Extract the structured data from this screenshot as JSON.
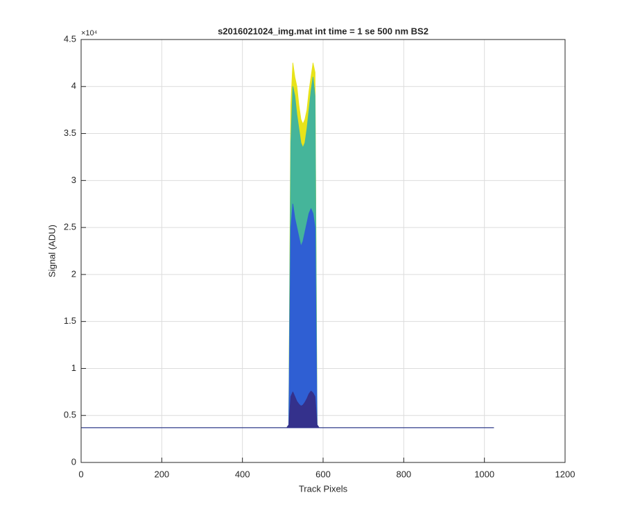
{
  "chart_data": {
    "type": "area",
    "title": "s2016021024_img.mat int time = 1 se  500 nm BS2",
    "x_label": "Track Pixels",
    "y_label": "Signal (ADU)",
    "y_scale_label": "×10⁴",
    "x": [
      0,
      510,
      515,
      520,
      525,
      530,
      535,
      540,
      545,
      550,
      555,
      560,
      565,
      570,
      575,
      580,
      585,
      590,
      1023
    ],
    "series": [
      {
        "color": "#e8e31a",
        "values": [
          3700,
          3700,
          4000,
          38000,
          42500,
          41000,
          40000,
          38000,
          36500,
          36000,
          36500,
          37500,
          39500,
          41000,
          42500,
          41500,
          4000,
          3700,
          3700
        ]
      },
      {
        "color": "#45b59a",
        "values": [
          3700,
          3700,
          4000,
          34000,
          40000,
          39000,
          37000,
          35500,
          34000,
          33500,
          34000,
          35500,
          37500,
          39500,
          41000,
          39000,
          4000,
          3700,
          3700
        ]
      },
      {
        "color": "#2f5fd3",
        "values": [
          3700,
          3700,
          4000,
          25000,
          27500,
          26000,
          25000,
          24000,
          23000,
          23500,
          24500,
          25500,
          26500,
          27000,
          26500,
          25000,
          4000,
          3700,
          3700
        ]
      },
      {
        "color": "#34318c",
        "values": [
          3700,
          3700,
          4000,
          7000,
          7500,
          7000,
          6500,
          6200,
          6000,
          6100,
          6400,
          6800,
          7300,
          7600,
          7400,
          7000,
          4000,
          3700,
          3700
        ]
      }
    ],
    "xlim": [
      0,
      1200
    ],
    "xticks": [
      0,
      200,
      400,
      600,
      800,
      1000,
      1200
    ],
    "ylim": [
      0,
      45000
    ],
    "yticks": [
      0,
      {
        "value": 5000,
        "label": "0.5"
      },
      {
        "value": 10000,
        "label": "1"
      },
      {
        "value": 15000,
        "label": "1.5"
      },
      {
        "value": 20000,
        "label": "2"
      },
      {
        "value": 25000,
        "label": "2.5"
      },
      {
        "value": 30000,
        "label": "3"
      },
      {
        "value": 35000,
        "label": "3.5"
      },
      {
        "value": 40000,
        "label": "4"
      },
      {
        "value": 45000,
        "label": "4.5"
      }
    ],
    "grid": true
  }
}
